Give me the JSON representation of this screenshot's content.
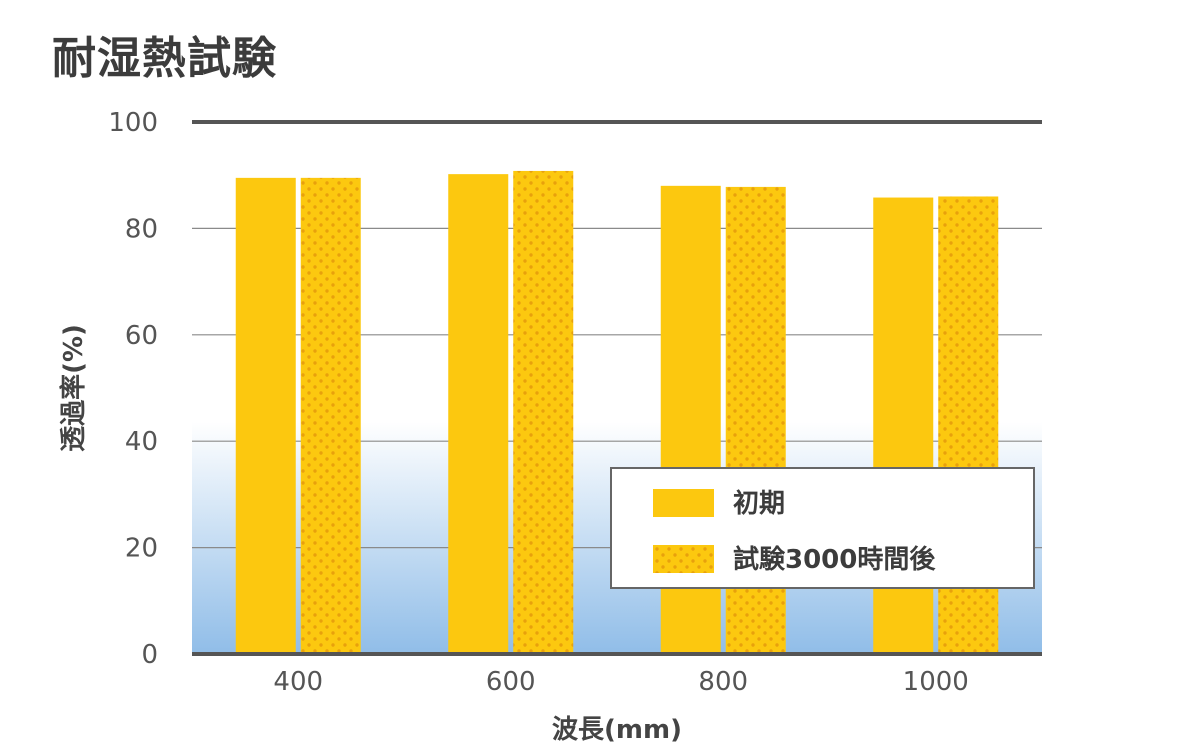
{
  "chart_data": {
    "type": "bar",
    "title": "耐湿熱試験",
    "xlabel": "波長(mm)",
    "ylabel": "透過率(%)",
    "categories": [
      "400",
      "600",
      "800",
      "1000"
    ],
    "series": [
      {
        "name": "初期",
        "values": [
          89.5,
          90.2,
          88.0,
          85.8
        ],
        "color": "#fcc80f",
        "pattern": "solid"
      },
      {
        "name": "試験3000時間後",
        "values": [
          89.5,
          90.8,
          87.8,
          86.0
        ],
        "color": "#fcc80f",
        "pattern": "dotted"
      }
    ],
    "ylim": [
      0,
      100
    ],
    "yticks": [
      0,
      20,
      40,
      60,
      80,
      100
    ],
    "grid": true,
    "legend_position": "bottom-right",
    "colors": {
      "bar": "#fcc80f",
      "dot": "#e8a10c",
      "gradient_top": "#ffffff",
      "gradient_bottom": "#90bde8",
      "grid": "#8a8a8a",
      "axis": "#555555"
    }
  }
}
